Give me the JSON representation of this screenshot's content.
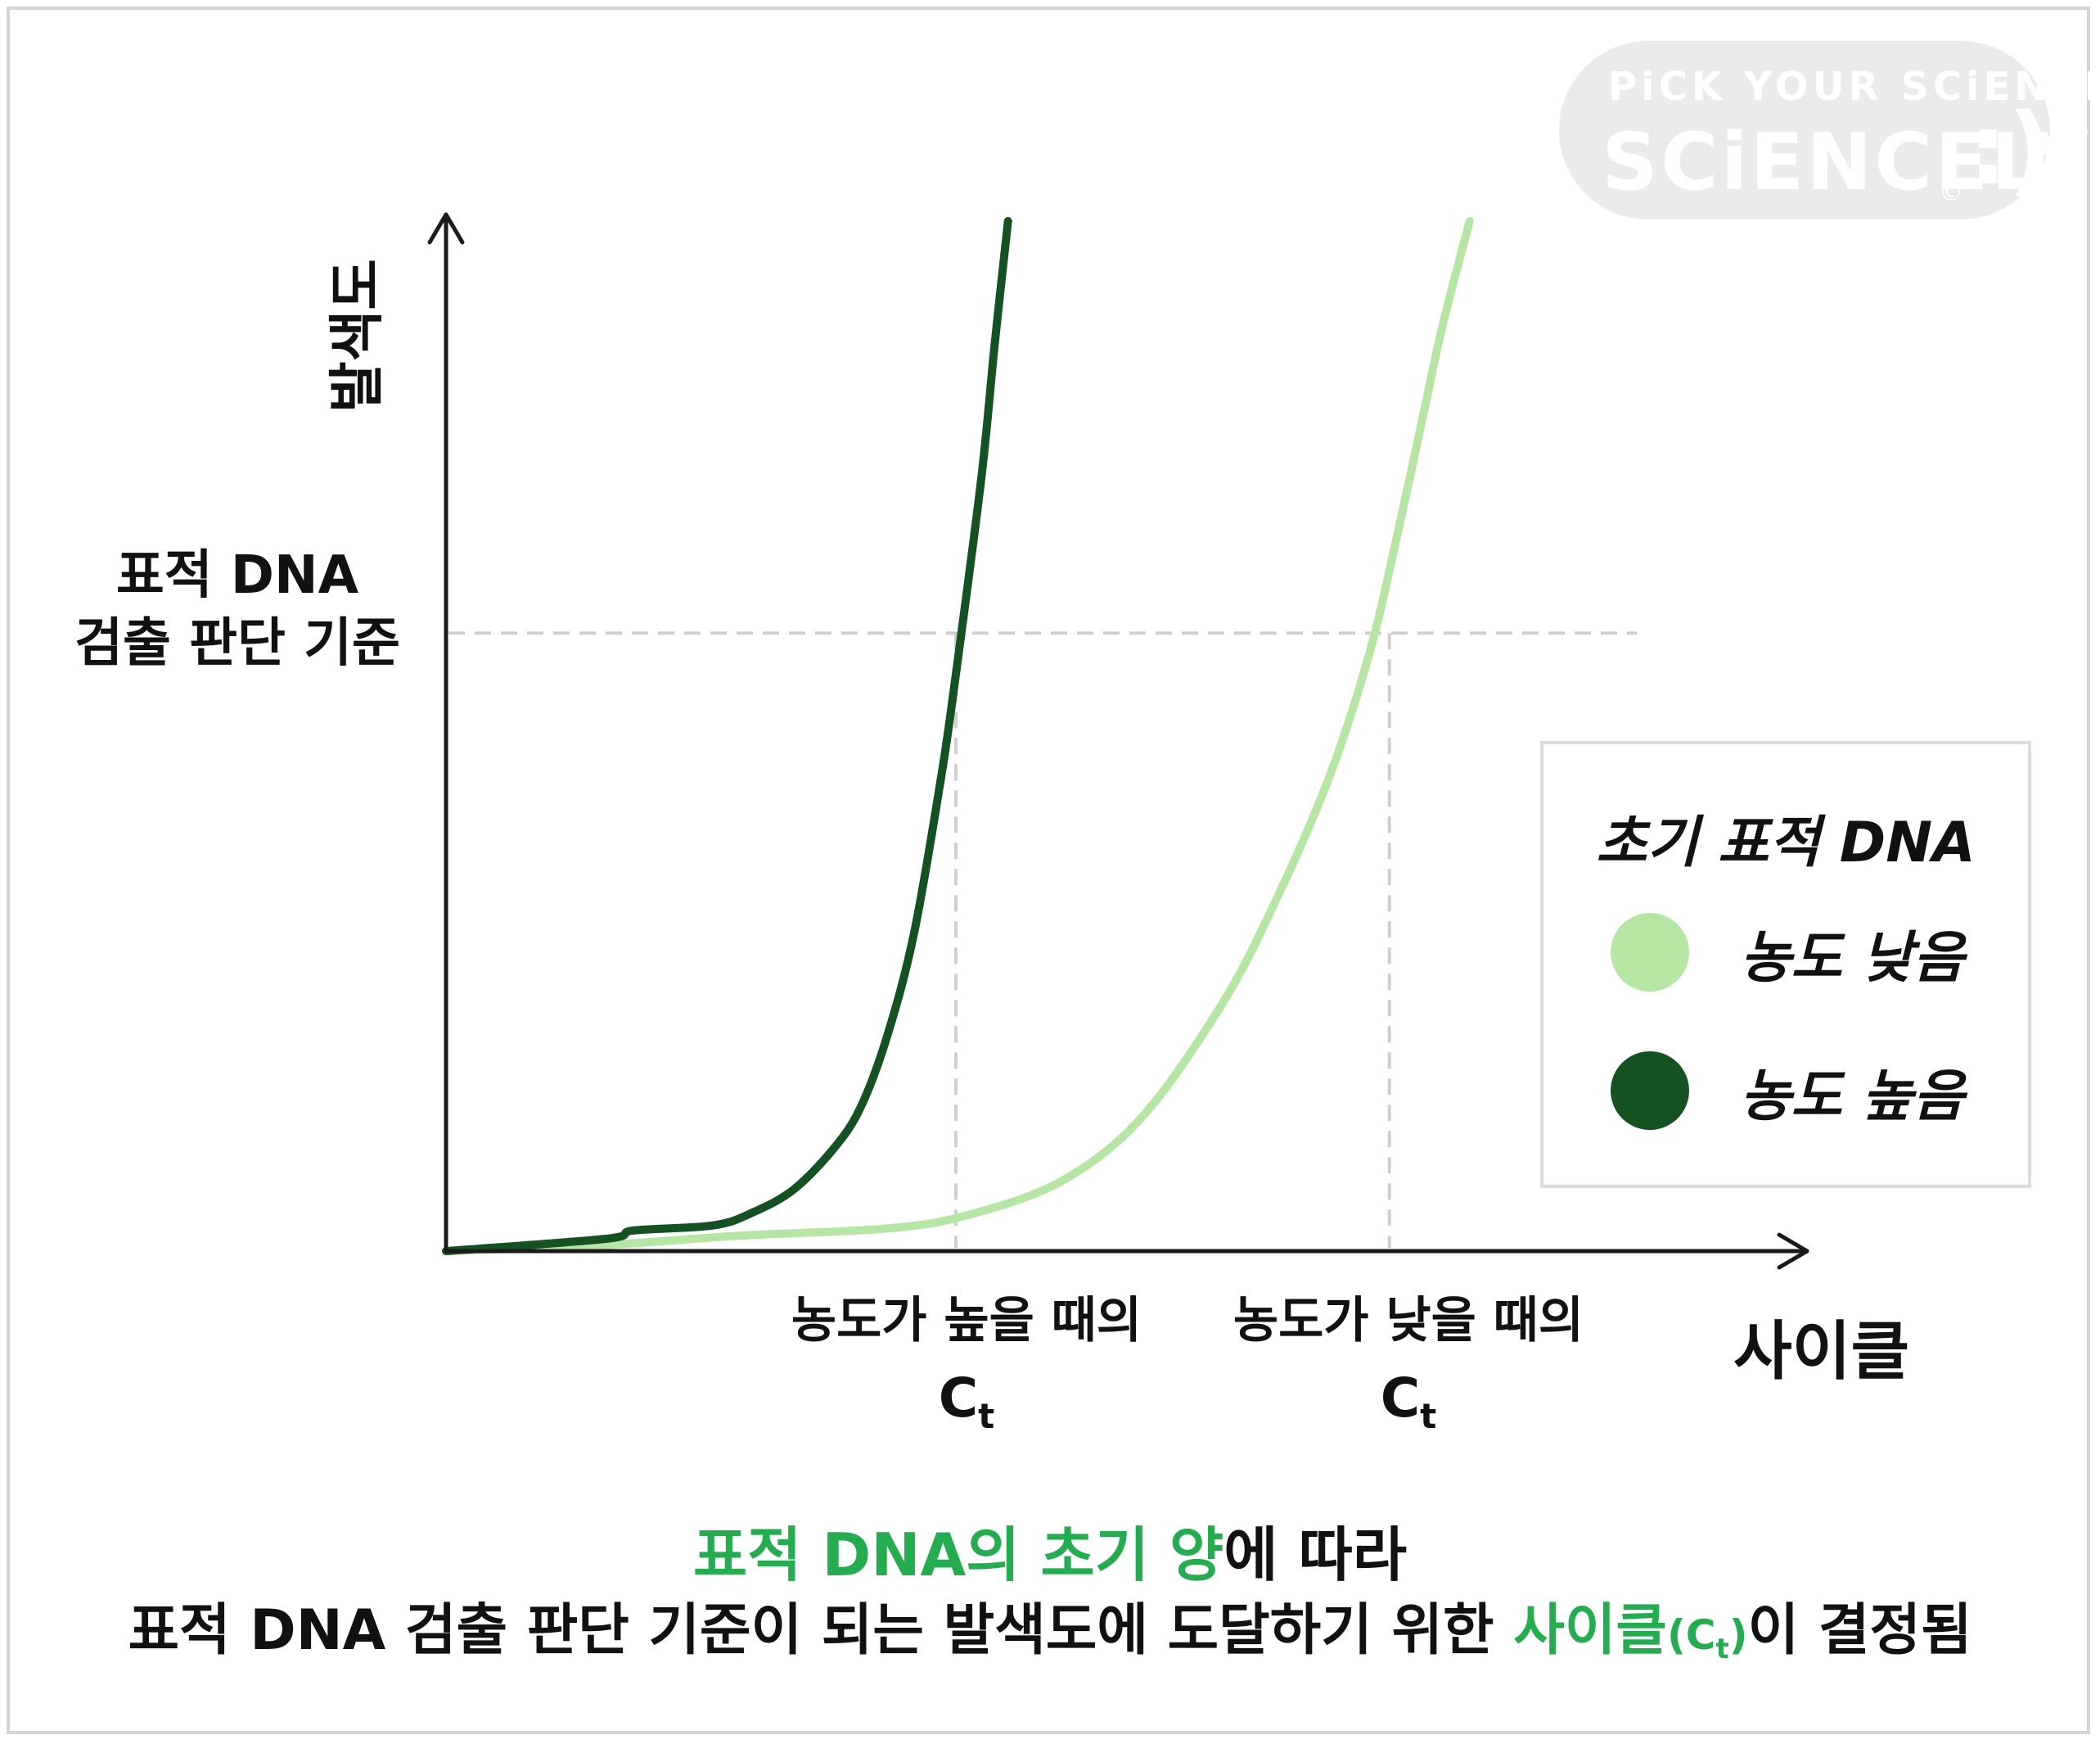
{
  "logo": {
    "tagline": "PiCK YOUR SCiENCE",
    "name": "SCiENCELY",
    "smile": ":)",
    "copyright": "©"
  },
  "colors": {
    "high_concentration": "#155221",
    "low_concentration": "#b6e6a3",
    "highlight": "#22ad4e",
    "threshold_line": "#cfcfcf",
    "axis": "#1a1a1a"
  },
  "chart_data": {
    "type": "line",
    "ylabel": "발색도",
    "xlabel": "사이클",
    "threshold_label": [
      "표적 DNA",
      "검출 판단 기준"
    ],
    "threshold": 0.6,
    "xlim": [
      0,
      10
    ],
    "ylim": [
      0,
      1
    ],
    "series": [
      {
        "name": "농도 높음",
        "color": "#155221",
        "x": [
          0,
          1.2,
          1.4,
          2.0,
          2.3,
          2.6,
          2.9,
          3.1,
          3.3,
          3.5,
          3.7,
          3.8,
          4.0,
          4.1,
          4.2
        ],
        "y": [
          0,
          0.012,
          0.02,
          0.025,
          0.038,
          0.06,
          0.1,
          0.14,
          0.21,
          0.31,
          0.46,
          0.55,
          0.75,
          0.88,
          1.0
        ]
      },
      {
        "name": "농도 낮음",
        "color": "#b6e6a3",
        "x": [
          0,
          1.2,
          2.2,
          3.3,
          3.9,
          4.6,
          5.2,
          5.8,
          6.2,
          6.6,
          6.9,
          7.1,
          7.3,
          7.45,
          7.65
        ],
        "y": [
          0,
          0.006,
          0.015,
          0.022,
          0.035,
          0.068,
          0.13,
          0.24,
          0.34,
          0.46,
          0.58,
          0.69,
          0.81,
          0.9,
          1.0
        ]
      }
    ],
    "ct_markers": [
      {
        "x": 3.81,
        "label_top": "농도가 높을 때의",
        "label_ct": "C",
        "label_sub": "t"
      },
      {
        "x": 7.05,
        "label_top": "농도가 낮을 때의",
        "label_ct": "C",
        "label_sub": "t"
      }
    ],
    "legend": {
      "title": "초기 표적 DNA",
      "items": [
        "농도 낮음",
        "농도 높음"
      ],
      "placement": "right"
    }
  },
  "caption": {
    "line1_green": "표적 DNA의 초기 양",
    "line1_rest": "에 따라",
    "line2_start": "표적 DNA 검출 판단 기준이 되는 발색도에 도달하기 위한 ",
    "line2_green": "사이클",
    "line2_paren_open": "(C",
    "line2_sub": "t",
    "line2_paren_close": ")",
    "line2_end": "이 결정됨"
  }
}
